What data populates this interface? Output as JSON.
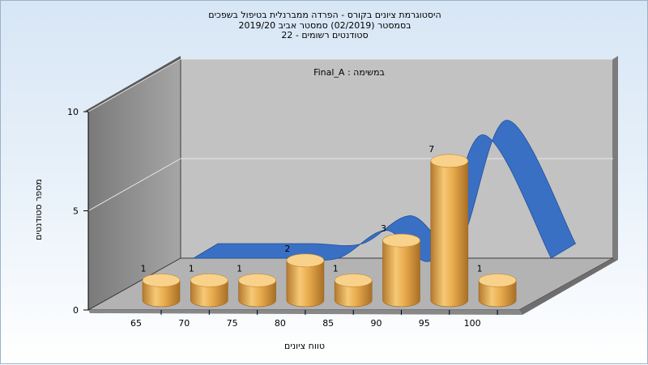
{
  "title_lines": [
    "היסטוגרמת ציונים בקורס - הפרדה ממברנלית בטיפול בשפכים",
    "בסמסטר  (02/2019)  סמסטר אביב 2019/20",
    "סטודנטים רשומים - 22"
  ],
  "annotation": "במשימה : Final_A",
  "chart_data": {
    "type": "bar",
    "title": "היסטוגרמת ציונים בקורס - הפרדה ממברנלית בטיפול בשפכים",
    "xlabel": "טווח ציונים",
    "ylabel": "מספר סטודנטים",
    "x_ticks": [
      "65",
      "70",
      "75",
      "80",
      "85",
      "90",
      "95",
      "100"
    ],
    "y_ticks": [
      "0",
      "5",
      "10"
    ],
    "ylim": [
      0,
      10
    ],
    "bars": [
      {
        "value": 1,
        "label": "1"
      },
      {
        "value": 1,
        "label": "1"
      },
      {
        "value": 1,
        "label": "1"
      },
      {
        "value": 2,
        "label": "2"
      },
      {
        "value": 1,
        "label": "1"
      },
      {
        "value": 3,
        "label": "3"
      },
      {
        "value": 7,
        "label": "7"
      },
      {
        "value": 1,
        "label": "1"
      }
    ],
    "curve": [
      0,
      0,
      0,
      0,
      1.4,
      0,
      6.2,
      0
    ],
    "colors": {
      "bar": "#e6a84a",
      "bar_light": "#f8d28a",
      "bar_dark": "#b5792a",
      "curve": "#3a70c4",
      "back_wall": "#c0c0c0",
      "side_wall": "#8c8c8c",
      "floor": "#b4b4b4"
    },
    "grid": true
  }
}
